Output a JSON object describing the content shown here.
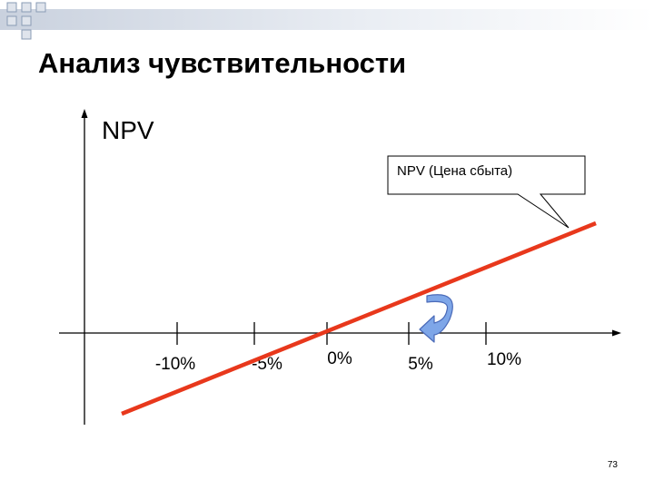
{
  "slide": {
    "title": "Анализ чувствительности",
    "page_number": "73"
  },
  "diagram": {
    "y_axis_label": "NPV",
    "x_ticks": [
      "-10%",
      "-5%",
      "0%",
      "5%",
      "10%"
    ],
    "callout": "NPV (Цена сбыта)",
    "colors": {
      "line": "#e8381c",
      "axis": "#000000",
      "arrow_fill": "#7ea6e8",
      "arrow_stroke": "#4a6ab8",
      "header_square_fill": "#dfe4ec",
      "header_square_border": "#8a9bb5"
    }
  }
}
